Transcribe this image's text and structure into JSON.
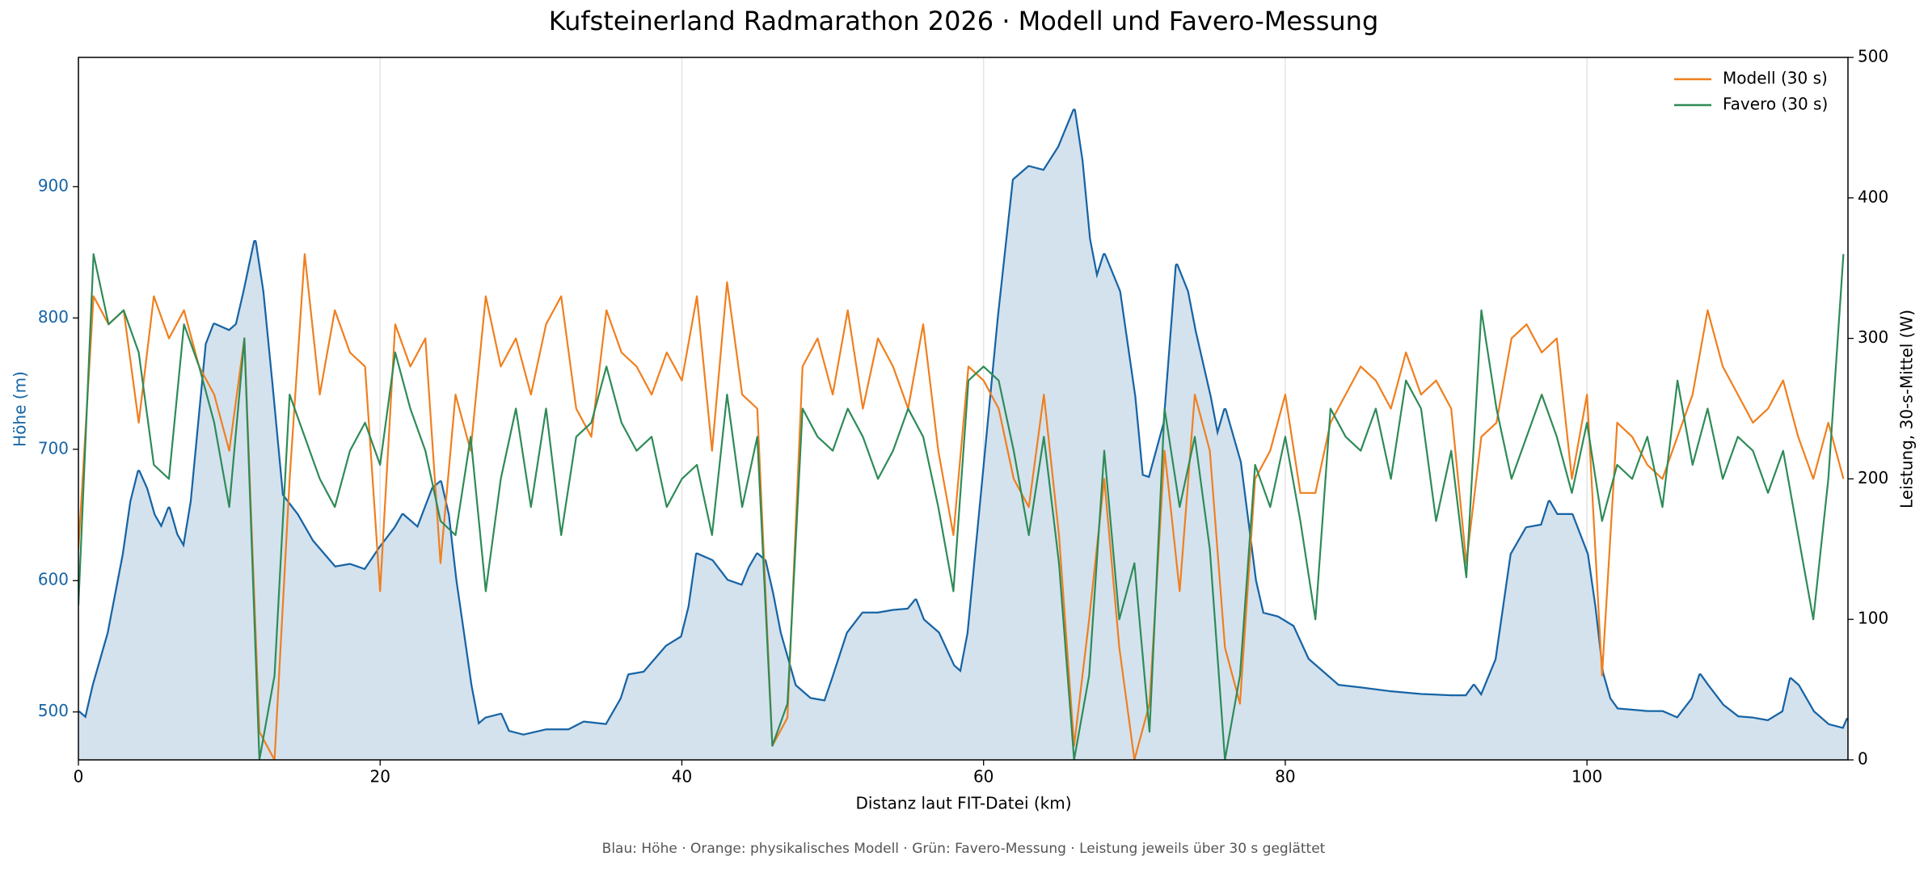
{
  "chart_data": {
    "type": "line",
    "title": "Kufsteinerland Radmarathon 2026 · Modell und Favero-Messung",
    "xlabel": "Distanz laut FIT-Datei (km)",
    "ylabel": "Höhe (m)",
    "y2label": "Leistung, 30-s-Mittel (W)",
    "footnote": "Blau: Höhe · Orange: physikalisches Modell · Grün: Favero-Messung · Leistung jeweils über 30 s geglättet",
    "xlim": [
      0,
      117.3
    ],
    "xticks": [
      0,
      20,
      40,
      60,
      80,
      100
    ],
    "ylim": [
      463.5,
      998.4
    ],
    "yticks": [
      500,
      600,
      700,
      800,
      900
    ],
    "y2lim": [
      0,
      500
    ],
    "y2ticks": [
      0,
      100,
      200,
      300,
      400,
      500
    ],
    "grid": "x",
    "legend": "upper right",
    "ylabel_color": "#1764a5",
    "series": [
      {
        "color": "#1764a5",
        "fill": "#d4e2ee",
        "x": [
          0,
          0.5,
          1,
          2,
          3,
          3.5,
          4,
          4.5,
          5,
          5.5,
          6,
          6.5,
          7,
          7.5,
          8,
          8.5,
          9,
          10,
          10.5,
          11,
          11.7,
          12.2,
          12.8,
          13.5,
          14.5,
          15.5,
          17,
          18,
          19,
          20,
          21,
          21.5,
          22.5,
          23.5,
          24,
          24.5,
          25,
          25.5,
          26,
          26.5,
          27,
          28,
          28.5,
          29.5,
          31,
          32.5,
          33.5,
          35,
          36,
          36.5,
          37.5,
          39,
          40,
          40.5,
          41,
          42,
          43,
          44,
          44.5,
          45,
          45.5,
          46,
          46.5,
          47.5,
          48.5,
          49.5,
          50,
          51,
          52,
          53,
          54,
          55,
          55.5,
          56,
          57,
          58,
          58.5,
          59,
          60,
          61,
          62,
          63,
          64,
          65,
          66,
          66.5,
          67,
          67.5,
          68,
          69,
          70,
          70.5,
          71,
          72,
          72.8,
          73.5,
          74,
          75,
          75.5,
          76,
          77,
          78,
          78.5,
          79.5,
          80.5,
          81.5,
          82.5,
          83.5,
          85,
          87,
          89,
          91,
          92,
          92.5,
          93,
          94,
          94.5,
          95,
          96,
          97,
          97.5,
          98,
          99,
          100,
          100.5,
          101,
          101.5,
          102,
          104,
          105,
          106,
          107,
          107.5,
          108,
          109,
          110,
          111,
          112,
          113,
          113.5,
          114,
          115,
          116,
          117,
          117.3
        ],
        "values": [
          500,
          495,
          520,
          560,
          620,
          660,
          683,
          670,
          650,
          640,
          655,
          635,
          625,
          660,
          720,
          780,
          795,
          790,
          795,
          820,
          858,
          820,
          750,
          665,
          650,
          630,
          610,
          612,
          608,
          625,
          640,
          650,
          640,
          670,
          675,
          650,
          600,
          560,
          520,
          490,
          495,
          498,
          485,
          482,
          486,
          486,
          492,
          490,
          510,
          528,
          530,
          550,
          557,
          580,
          620,
          615,
          600,
          596,
          610,
          620,
          615,
          590,
          560,
          520,
          510,
          508,
          525,
          560,
          575,
          575,
          577,
          578,
          585,
          570,
          560,
          535,
          530,
          560,
          680,
          800,
          905,
          915,
          912,
          930,
          958,
          920,
          860,
          830,
          848,
          820,
          740,
          680,
          678,
          720,
          840,
          820,
          790,
          740,
          710,
          730,
          690,
          600,
          575,
          572,
          565,
          540,
          530,
          520,
          518,
          515,
          513,
          512,
          512,
          520,
          512,
          540,
          580,
          620,
          640,
          642,
          660,
          650,
          650,
          620,
          580,
          530,
          510,
          502,
          500,
          500,
          495,
          510,
          528,
          520,
          505,
          496,
          495,
          493,
          500,
          525,
          520,
          500,
          490,
          487,
          495
        ]
      },
      {
        "name": "Modell (30 s)",
        "color": "#f07f1e",
        "axis": "y2",
        "x": [
          0,
          1,
          2,
          3,
          4,
          5,
          6,
          7,
          8,
          9,
          10,
          11,
          12,
          13,
          14,
          15,
          16,
          17,
          18,
          19,
          20,
          21,
          22,
          23,
          24,
          25,
          26,
          27,
          28,
          29,
          30,
          31,
          32,
          33,
          34,
          35,
          36,
          37,
          38,
          39,
          40,
          41,
          42,
          43,
          44,
          45,
          46,
          47,
          48,
          49,
          50,
          51,
          52,
          53,
          54,
          55,
          56,
          57,
          58,
          59,
          60,
          61,
          62,
          63,
          64,
          65,
          66,
          67,
          68,
          69,
          70,
          71,
          72,
          73,
          74,
          75,
          76,
          77,
          78,
          79,
          80,
          81,
          82,
          83,
          84,
          85,
          86,
          87,
          88,
          89,
          90,
          91,
          92,
          93,
          94,
          95,
          96,
          97,
          98,
          99,
          100,
          101,
          102,
          103,
          104,
          105,
          106,
          107,
          108,
          109,
          110,
          111,
          112,
          113,
          114,
          115,
          116,
          117
        ],
        "values": [
          150,
          330,
          310,
          320,
          240,
          330,
          300,
          320,
          280,
          260,
          220,
          300,
          20,
          0,
          200,
          360,
          260,
          320,
          290,
          280,
          120,
          310,
          280,
          300,
          140,
          260,
          220,
          330,
          280,
          300,
          260,
          310,
          330,
          250,
          230,
          320,
          290,
          280,
          260,
          290,
          270,
          330,
          220,
          340,
          260,
          250,
          10,
          30,
          280,
          300,
          260,
          320,
          250,
          300,
          280,
          250,
          310,
          220,
          160,
          280,
          270,
          250,
          200,
          180,
          260,
          160,
          10,
          100,
          200,
          80,
          0,
          40,
          220,
          120,
          260,
          220,
          80,
          40,
          200,
          220,
          260,
          190,
          190,
          240,
          260,
          280,
          270,
          250,
          290,
          260,
          270,
          250,
          140,
          230,
          240,
          300,
          310,
          290,
          300,
          200,
          260,
          60,
          240,
          230,
          210,
          200,
          230,
          260,
          320,
          280,
          260,
          240,
          250,
          270,
          230,
          200,
          240,
          200
        ]
      },
      {
        "name": "Favero (30 s)",
        "color": "#2e8b57",
        "axis": "y2",
        "x": [
          0,
          1,
          2,
          3,
          4,
          5,
          6,
          7,
          8,
          9,
          10,
          11,
          12,
          13,
          14,
          15,
          16,
          17,
          18,
          19,
          20,
          21,
          22,
          23,
          24,
          25,
          26,
          27,
          28,
          29,
          30,
          31,
          32,
          33,
          34,
          35,
          36,
          37,
          38,
          39,
          40,
          41,
          42,
          43,
          44,
          45,
          46,
          47,
          48,
          49,
          50,
          51,
          52,
          53,
          54,
          55,
          56,
          57,
          58,
          59,
          60,
          61,
          62,
          63,
          64,
          65,
          66,
          67,
          68,
          69,
          70,
          71,
          72,
          73,
          74,
          75,
          76,
          77,
          78,
          79,
          80,
          81,
          82,
          83,
          84,
          85,
          86,
          87,
          88,
          89,
          90,
          91,
          92,
          93,
          94,
          95,
          96,
          97,
          98,
          99,
          100,
          101,
          102,
          103,
          104,
          105,
          106,
          107,
          108,
          109,
          110,
          111,
          112,
          113,
          114,
          115,
          116,
          117
        ],
        "values": [
          110,
          360,
          310,
          320,
          290,
          210,
          200,
          310,
          280,
          240,
          180,
          300,
          0,
          60,
          260,
          230,
          200,
          180,
          220,
          240,
          210,
          290,
          250,
          220,
          170,
          160,
          230,
          120,
          200,
          250,
          180,
          250,
          160,
          230,
          240,
          280,
          240,
          220,
          230,
          180,
          200,
          210,
          160,
          260,
          180,
          230,
          10,
          40,
          250,
          230,
          220,
          250,
          230,
          200,
          220,
          250,
          230,
          180,
          120,
          270,
          280,
          270,
          220,
          160,
          230,
          140,
          0,
          60,
          220,
          100,
          140,
          20,
          250,
          180,
          230,
          150,
          0,
          60,
          210,
          180,
          230,
          170,
          100,
          250,
          230,
          220,
          250,
          200,
          270,
          250,
          170,
          220,
          130,
          320,
          250,
          200,
          230,
          260,
          230,
          190,
          240,
          170,
          210,
          200,
          230,
          180,
          270,
          210,
          250,
          200,
          230,
          220,
          190,
          220,
          160,
          100,
          200,
          360
        ]
      }
    ]
  }
}
